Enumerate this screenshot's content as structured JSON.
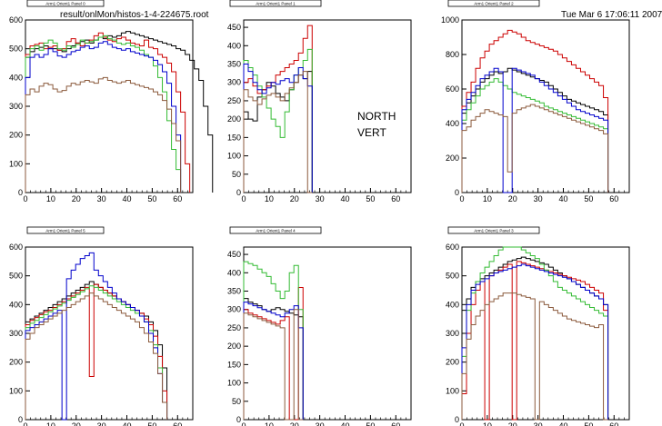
{
  "header": {
    "file": "result/onlMon/histos-1-4-224675.root",
    "date": "Tue Mar  6 17:06:11 2007"
  },
  "annotations": [
    "NORTH",
    "VERT"
  ],
  "colors": {
    "black": "#000000",
    "red": "#cc0000",
    "green": "#33bb33",
    "blue": "#0000cc",
    "brown": "#8b5a3c"
  },
  "chart_data": [
    {
      "type": "line",
      "title": "Arm1 Orient1 Panel 0",
      "xlim": [
        0,
        66
      ],
      "ylim": [
        0,
        600
      ],
      "xticks": [
        0,
        10,
        20,
        30,
        40,
        50,
        60
      ],
      "yticks": [
        0,
        100,
        200,
        300,
        400,
        500,
        600
      ],
      "series": [
        {
          "color": "black",
          "values": [
            470,
            490,
            500,
            505,
            510,
            500,
            500,
            495,
            490,
            500,
            510,
            520,
            525,
            530,
            520,
            530,
            540,
            535,
            545,
            540,
            545,
            555,
            560,
            555,
            550,
            545,
            540,
            535,
            530,
            525,
            520,
            515,
            510,
            500,
            495,
            480,
            460,
            430,
            390,
            300,
            200
          ]
        },
        {
          "color": "red",
          "values": [
            480,
            510,
            515,
            520,
            500,
            505,
            510,
            495,
            500,
            525,
            535,
            520,
            510,
            520,
            530,
            545,
            555,
            540,
            530,
            525,
            535,
            540,
            530,
            520,
            515,
            510,
            530,
            505,
            500,
            480,
            470,
            450,
            420,
            350,
            280,
            100
          ]
        },
        {
          "color": "green",
          "values": [
            470,
            500,
            510,
            495,
            520,
            530,
            520,
            500,
            495,
            510,
            505,
            515,
            530,
            520,
            525,
            530,
            540,
            545,
            535,
            530,
            520,
            515,
            520,
            510,
            505,
            495,
            480,
            470,
            440,
            400,
            350,
            250,
            150,
            80
          ]
        },
        {
          "color": "blue",
          "values": [
            400,
            470,
            480,
            470,
            480,
            500,
            490,
            475,
            470,
            480,
            490,
            495,
            505,
            510,
            500,
            505,
            520,
            525,
            515,
            505,
            500,
            495,
            500,
            490,
            485,
            480,
            475,
            470,
            460,
            445,
            420,
            380,
            300,
            200
          ]
        },
        {
          "color": "brown",
          "values": [
            340,
            360,
            350,
            370,
            380,
            375,
            360,
            350,
            355,
            370,
            380,
            375,
            385,
            390,
            385,
            380,
            395,
            400,
            390,
            385,
            380,
            385,
            390,
            380,
            375,
            370,
            365,
            360,
            350,
            340,
            320,
            290,
            240,
            180
          ]
        }
      ]
    },
    {
      "type": "line",
      "title": "Arm1 Orient1 Panel 1",
      "xlim": [
        0,
        66
      ],
      "ylim": [
        0,
        470
      ],
      "xticks": [
        0,
        10,
        20,
        30,
        40,
        50,
        60
      ],
      "yticks": [
        0,
        50,
        100,
        150,
        200,
        250,
        300,
        350,
        400,
        450
      ],
      "series": [
        {
          "color": "black",
          "values": [
            220,
            200,
            195,
            260,
            280,
            300,
            290,
            270,
            260,
            250,
            280,
            300,
            320,
            310,
            330
          ]
        },
        {
          "color": "red",
          "values": [
            300,
            310,
            290,
            270,
            280,
            290,
            300,
            320,
            330,
            340,
            350,
            360,
            380,
            420,
            455
          ]
        },
        {
          "color": "green",
          "values": [
            360,
            340,
            320,
            290,
            260,
            230,
            200,
            180,
            150,
            220,
            280,
            320,
            340,
            360,
            390
          ]
        },
        {
          "color": "blue",
          "values": [
            350,
            330,
            300,
            280,
            270,
            285,
            300,
            295,
            305,
            310,
            300,
            320,
            340,
            310,
            290
          ]
        },
        {
          "color": "brown",
          "values": [
            280,
            260,
            250,
            240,
            255,
            265,
            270,
            260,
            250,
            270,
            285,
            300,
            320,
            330,
            0
          ]
        }
      ]
    },
    {
      "type": "line",
      "title": "Arm1 Orient1 Panel 2",
      "xlim": [
        0,
        66
      ],
      "ylim": [
        0,
        1000
      ],
      "xticks": [
        0,
        10,
        20,
        30,
        40,
        50,
        60
      ],
      "yticks": [
        0,
        200,
        400,
        600,
        800,
        1000
      ],
      "series": [
        {
          "color": "black",
          "values": [
            460,
            520,
            560,
            600,
            640,
            660,
            680,
            700,
            690,
            700,
            720,
            710,
            700,
            690,
            680,
            670,
            660,
            650,
            640,
            620,
            600,
            580,
            560,
            540,
            530,
            520,
            510,
            500,
            490,
            480,
            470,
            450
          ]
        },
        {
          "color": "red",
          "values": [
            500,
            580,
            640,
            720,
            780,
            820,
            860,
            880,
            900,
            920,
            940,
            930,
            920,
            900,
            880,
            870,
            860,
            850,
            840,
            830,
            820,
            800,
            780,
            760,
            740,
            720,
            700,
            680,
            660,
            640,
            620,
            550
          ]
        },
        {
          "color": "green",
          "values": [
            420,
            480,
            520,
            560,
            600,
            620,
            640,
            660,
            640,
            620,
            600,
            580,
            570,
            560,
            550,
            540,
            530,
            520,
            500,
            490,
            480,
            470,
            460,
            450,
            440,
            430,
            420,
            410,
            400,
            390,
            380,
            370
          ]
        },
        {
          "color": "blue",
          "values": [
            480,
            540,
            580,
            620,
            660,
            680,
            700,
            720,
            700,
            0,
            0,
            720,
            710,
            700,
            690,
            680,
            660,
            640,
            620,
            600,
            580,
            560,
            540,
            520,
            500,
            480,
            470,
            460,
            450,
            440,
            430,
            420
          ]
        },
        {
          "color": "brown",
          "values": [
            360,
            380,
            420,
            440,
            460,
            480,
            470,
            460,
            450,
            440,
            120,
            460,
            480,
            490,
            500,
            510,
            500,
            490,
            480,
            470,
            460,
            450,
            440,
            430,
            420,
            410,
            400,
            390,
            380,
            370,
            360,
            340
          ]
        }
      ]
    },
    {
      "type": "line",
      "title": "Arm1 Orient1 Panel 5",
      "xlim": [
        0,
        66
      ],
      "ylim": [
        0,
        600
      ],
      "xticks": [
        0,
        10,
        20,
        30,
        40,
        50,
        60
      ],
      "yticks": [
        0,
        100,
        200,
        300,
        400,
        500,
        600
      ],
      "series": [
        {
          "color": "black",
          "values": [
            340,
            350,
            360,
            370,
            380,
            390,
            400,
            410,
            420,
            430,
            440,
            450,
            460,
            470,
            480,
            470,
            460,
            450,
            440,
            430,
            420,
            410,
            400,
            390,
            380,
            370,
            360,
            340,
            310,
            260,
            180
          ]
        },
        {
          "color": "red",
          "values": [
            330,
            345,
            355,
            365,
            375,
            380,
            390,
            400,
            410,
            420,
            430,
            440,
            450,
            460,
            150,
            470,
            460,
            450,
            440,
            430,
            420,
            410,
            400,
            390,
            380,
            370,
            350,
            330,
            290,
            220,
            100
          ]
        },
        {
          "color": "green",
          "values": [
            320,
            335,
            345,
            355,
            365,
            375,
            385,
            395,
            405,
            415,
            425,
            435,
            445,
            455,
            465,
            460,
            450,
            440,
            430,
            420,
            410,
            400,
            390,
            380,
            370,
            360,
            340,
            310,
            260,
            180,
            60
          ]
        },
        {
          "color": "blue",
          "values": [
            310,
            320,
            330,
            340,
            350,
            360,
            370,
            380,
            0,
            490,
            520,
            540,
            560,
            570,
            580,
            520,
            500,
            480,
            460,
            440,
            420,
            410,
            400,
            390,
            380,
            360,
            340,
            300,
            250,
            160,
            60
          ]
        },
        {
          "color": "brown",
          "values": [
            280,
            300,
            320,
            330,
            340,
            350,
            360,
            370,
            380,
            390,
            400,
            410,
            420,
            430,
            440,
            430,
            420,
            410,
            400,
            390,
            380,
            370,
            360,
            350,
            340,
            320,
            300,
            270,
            230,
            160,
            60
          ]
        }
      ]
    },
    {
      "type": "line",
      "title": "Arm1 Orient1 Panel 4",
      "xlim": [
        0,
        66
      ],
      "ylim": [
        0,
        470
      ],
      "xticks": [
        0,
        10,
        20,
        30,
        40,
        50,
        60
      ],
      "yticks": [
        0,
        50,
        100,
        150,
        200,
        250,
        300,
        350,
        400,
        450
      ],
      "series": [
        {
          "color": "black",
          "values": [
            330,
            320,
            315,
            310,
            300,
            295,
            300,
            305,
            300,
            295,
            290,
            285,
            280
          ]
        },
        {
          "color": "red",
          "values": [
            300,
            290,
            285,
            280,
            275,
            270,
            265,
            260,
            270,
            280,
            0,
            0,
            360
          ]
        },
        {
          "color": "green",
          "values": [
            430,
            425,
            420,
            410,
            400,
            390,
            370,
            350,
            330,
            350,
            400,
            420,
            300
          ]
        },
        {
          "color": "blue",
          "values": [
            320,
            315,
            310,
            305,
            300,
            295,
            290,
            285,
            280,
            290,
            300,
            310,
            250
          ]
        },
        {
          "color": "brown",
          "values": [
            290,
            285,
            280,
            275,
            270,
            265,
            260,
            255,
            250,
            0,
            0,
            300,
            0
          ]
        }
      ]
    },
    {
      "type": "line",
      "title": "Arm1 Orient1 Panel 3",
      "xlim": [
        0,
        66
      ],
      "ylim": [
        0,
        600
      ],
      "xticks": [
        0,
        10,
        20,
        30,
        40,
        50,
        60
      ],
      "yticks": [
        0,
        100,
        200,
        300,
        400,
        500,
        600
      ],
      "series": [
        {
          "color": "black",
          "values": [
            380,
            420,
            460,
            480,
            490,
            500,
            510,
            520,
            530,
            540,
            550,
            555,
            560,
            565,
            560,
            555,
            550,
            545,
            540,
            530,
            520,
            510,
            500,
            490,
            480,
            470,
            460,
            450,
            440,
            430,
            420,
            400
          ]
        },
        {
          "color": "red",
          "values": [
            90,
            300,
            400,
            450,
            480,
            0,
            500,
            510,
            520,
            530,
            540,
            0,
            550,
            545,
            540,
            535,
            530,
            525,
            520,
            515,
            510,
            505,
            500,
            495,
            490,
            485,
            480,
            470,
            460,
            450,
            440,
            380
          ]
        },
        {
          "color": "green",
          "values": [
            220,
            380,
            440,
            480,
            510,
            530,
            550,
            570,
            590,
            600,
            610,
            605,
            600,
            590,
            580,
            570,
            560,
            540,
            520,
            500,
            480,
            460,
            450,
            440,
            430,
            420,
            410,
            400,
            390,
            380,
            370,
            360
          ]
        },
        {
          "color": "blue",
          "values": [
            250,
            400,
            450,
            470,
            480,
            490,
            500,
            510,
            515,
            520,
            525,
            530,
            535,
            540,
            535,
            530,
            525,
            520,
            515,
            510,
            505,
            500,
            495,
            490,
            480,
            470,
            460,
            450,
            440,
            430,
            420,
            400
          ]
        },
        {
          "color": "brown",
          "values": [
            160,
            280,
            330,
            360,
            380,
            400,
            410,
            420,
            430,
            440,
            440,
            440,
            435,
            430,
            425,
            420,
            0,
            410,
            400,
            390,
            380,
            370,
            360,
            350,
            345,
            340,
            335,
            330,
            325,
            320,
            330,
            0
          ]
        }
      ]
    }
  ]
}
